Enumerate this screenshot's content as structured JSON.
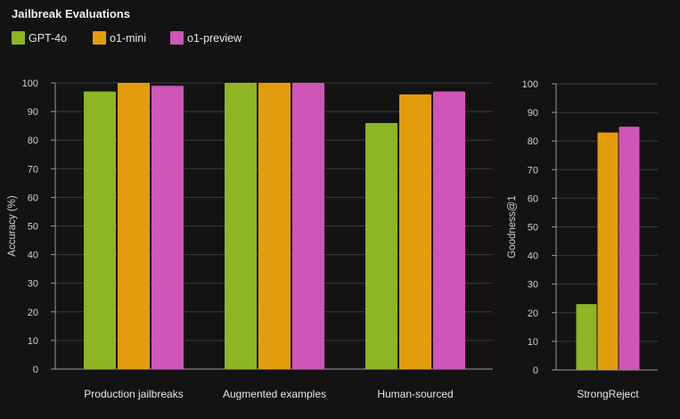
{
  "title": "Jailbreak Evaluations",
  "legend": [
    {
      "label": "GPT-4o",
      "color": "#8db524"
    },
    {
      "label": "o1-mini",
      "color": "#e39d0c"
    },
    {
      "label": "o1-preview",
      "color": "#d055b8"
    }
  ],
  "chart_data": [
    {
      "type": "bar",
      "categories": [
        "Production jailbreaks",
        "Augmented examples",
        "Human-sourced"
      ],
      "series": [
        {
          "name": "GPT-4o",
          "values": [
            97,
            100,
            86
          ]
        },
        {
          "name": "o1-mini",
          "values": [
            100,
            100,
            96
          ]
        },
        {
          "name": "o1-preview",
          "values": [
            99,
            100,
            97
          ]
        }
      ],
      "ylabel": "Accuracy (%)",
      "ylim": [
        0,
        100
      ],
      "yticks": [
        0,
        10,
        20,
        30,
        40,
        50,
        60,
        70,
        80,
        90,
        100
      ],
      "grid": true
    },
    {
      "type": "bar",
      "categories": [
        "StrongReject"
      ],
      "series": [
        {
          "name": "GPT-4o",
          "values": [
            23
          ]
        },
        {
          "name": "o1-mini",
          "values": [
            83
          ]
        },
        {
          "name": "o1-preview",
          "values": [
            85
          ]
        }
      ],
      "ylabel": "Goodness@1",
      "ylim": [
        0,
        100
      ],
      "yticks": [
        0,
        10,
        20,
        30,
        40,
        50,
        60,
        70,
        80,
        90,
        100
      ],
      "grid": true
    }
  ]
}
